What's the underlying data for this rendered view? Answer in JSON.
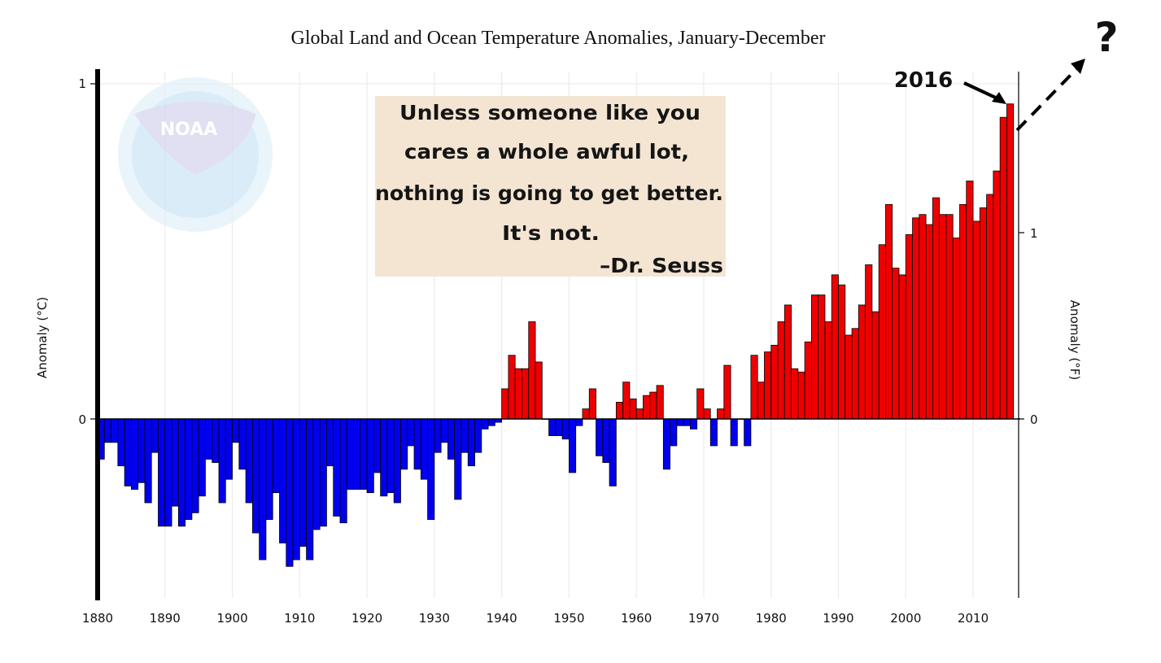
{
  "chart_data": {
    "type": "bar",
    "title": "Global Land and Ocean Temperature Anomalies, January-December",
    "ylabel_left": "Anomaly (°C)",
    "ylabel_right": "Anomaly (°F)",
    "x_ticks": [
      "1880",
      "1890",
      "1900",
      "1910",
      "1920",
      "1930",
      "1940",
      "1950",
      "1960",
      "1970",
      "1980",
      "1990",
      "2000",
      "2010"
    ],
    "y_ticks_left": [
      "1",
      "0"
    ],
    "y_ticks_right": [
      "1",
      "0"
    ],
    "ylim_c": [
      -0.54,
      1.03
    ],
    "xlim": [
      1880,
      2017
    ],
    "grid": true,
    "positive_color": "#ee0000",
    "negative_color": "#0000ee",
    "first_year": 1880,
    "values": [
      -0.12,
      -0.07,
      -0.07,
      -0.14,
      -0.2,
      -0.21,
      -0.19,
      -0.25,
      -0.1,
      -0.32,
      -0.32,
      -0.26,
      -0.32,
      -0.3,
      -0.28,
      -0.23,
      -0.12,
      -0.13,
      -0.25,
      -0.18,
      -0.07,
      -0.15,
      -0.25,
      -0.34,
      -0.42,
      -0.3,
      -0.22,
      -0.37,
      -0.44,
      -0.42,
      -0.38,
      -0.42,
      -0.33,
      -0.32,
      -0.14,
      -0.29,
      -0.31,
      -0.21,
      -0.21,
      -0.21,
      -0.22,
      -0.16,
      -0.23,
      -0.22,
      -0.25,
      -0.15,
      -0.08,
      -0.15,
      -0.18,
      -0.3,
      -0.1,
      -0.07,
      -0.12,
      -0.24,
      -0.1,
      -0.14,
      -0.1,
      -0.03,
      -0.02,
      -0.01,
      0.09,
      0.19,
      0.15,
      0.15,
      0.29,
      0.17,
      0.0,
      -0.05,
      -0.05,
      -0.06,
      -0.16,
      -0.02,
      0.03,
      0.09,
      -0.11,
      -0.13,
      -0.2,
      0.05,
      0.11,
      0.06,
      0.03,
      0.07,
      0.08,
      0.1,
      -0.15,
      -0.08,
      -0.02,
      -0.02,
      -0.03,
      0.09,
      0.03,
      -0.08,
      0.03,
      0.16,
      -0.08,
      0.0,
      -0.08,
      0.19,
      0.11,
      0.2,
      0.22,
      0.29,
      0.34,
      0.15,
      0.14,
      0.23,
      0.37,
      0.37,
      0.29,
      0.43,
      0.4,
      0.25,
      0.27,
      0.34,
      0.46,
      0.32,
      0.52,
      0.64,
      0.45,
      0.43,
      0.55,
      0.6,
      0.61,
      0.58,
      0.66,
      0.61,
      0.61,
      0.54,
      0.64,
      0.71,
      0.59,
      0.63,
      0.67,
      0.74,
      0.9,
      0.94
    ]
  },
  "annotations": {
    "year_label": "2016",
    "question_mark": "?"
  },
  "quote": {
    "lines": [
      "Unless someone like you",
      "cares a whole awful lot,",
      "nothing is going to get better.",
      "It's not."
    ],
    "author": "–Dr. Seuss"
  },
  "logo": {
    "label": "NOAA"
  },
  "colors": {
    "quote_bg": "#f4e5d3",
    "logo_blue": "#cde6f6",
    "logo_purple": "#d8d5ee"
  }
}
